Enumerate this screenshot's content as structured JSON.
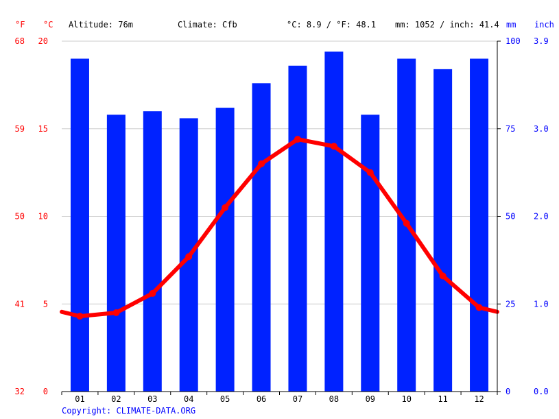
{
  "header": {
    "unit_f": "°F",
    "unit_c": "°C",
    "unit_mm": "mm",
    "unit_inch": "inch",
    "altitude": "Altitude: 76m",
    "climate": "Climate: Cfb",
    "temp_summary": "°C: 8.9 / °F: 48.1",
    "precip_summary": "mm: 1052 / inch: 41.4"
  },
  "copyright": "Copyright: CLIMATE-DATA.ORG",
  "colors": {
    "bars": "#0022ff",
    "line": "#ff0000",
    "red_text": "#ff0000",
    "blue_text": "#0000ff",
    "grid": "#cccccc"
  },
  "chart_data": {
    "type": "bar",
    "categories": [
      "01",
      "02",
      "03",
      "04",
      "05",
      "06",
      "07",
      "08",
      "09",
      "10",
      "11",
      "12"
    ],
    "series": [
      {
        "type": "bar",
        "axis": "mm",
        "values": [
          95,
          79,
          80,
          78,
          81,
          88,
          93,
          97,
          79,
          95,
          92,
          95
        ]
      },
      {
        "type": "line",
        "axis": "°C",
        "values": [
          4.3,
          4.5,
          5.6,
          7.7,
          10.5,
          13.0,
          14.4,
          14.0,
          12.5,
          9.6,
          6.6,
          4.8
        ]
      }
    ],
    "axes": {
      "c": {
        "min": 0,
        "max": 20,
        "ticks": [
          "0",
          "5",
          "10",
          "15",
          "20"
        ]
      },
      "f": {
        "ticks": [
          "32",
          "41",
          "50",
          "59",
          "68"
        ]
      },
      "mm": {
        "min": 0,
        "max": 100,
        "ticks": [
          "0",
          "25",
          "50",
          "75",
          "100"
        ]
      },
      "inch": {
        "ticks": [
          "0.0",
          "1.0",
          "2.0",
          "3.0",
          "3.9"
        ]
      }
    },
    "grid": true
  }
}
